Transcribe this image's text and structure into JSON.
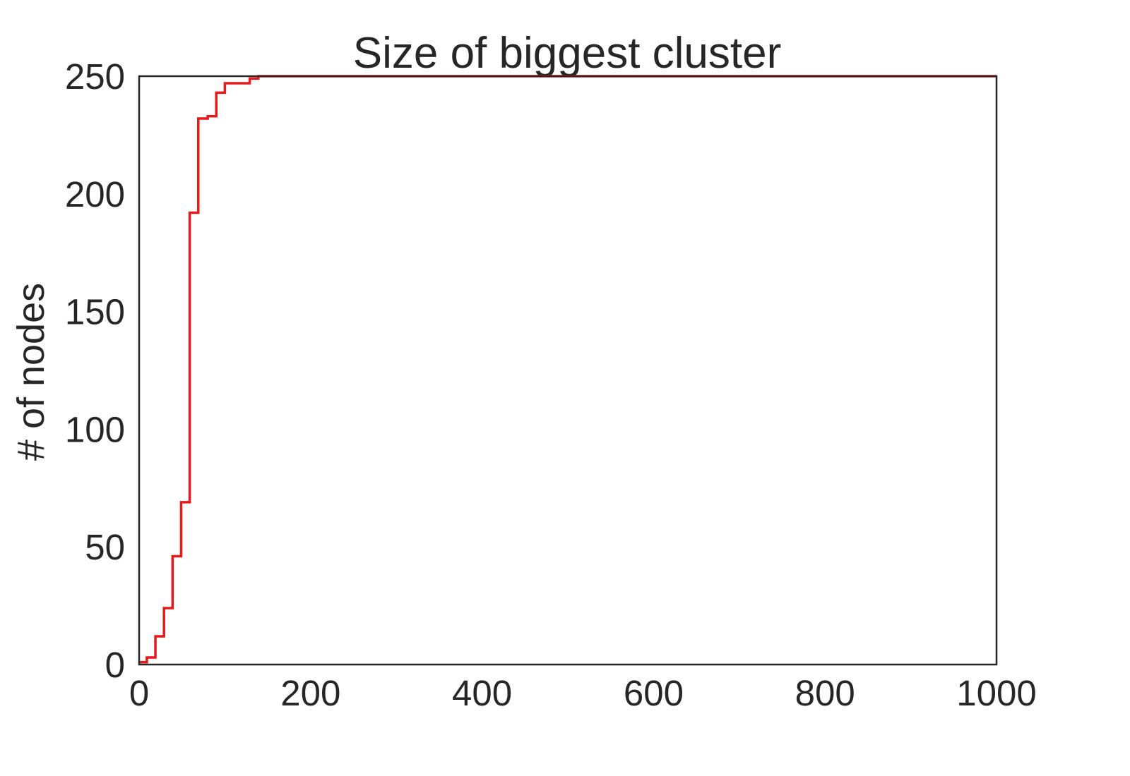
{
  "chart_data": {
    "type": "line",
    "title": "Size of biggest cluster",
    "xlabel": "",
    "ylabel": "# of nodes",
    "xlim": [
      0,
      1000
    ],
    "ylim": [
      0,
      250
    ],
    "xticks": [
      0,
      200,
      400,
      600,
      800,
      1000
    ],
    "yticks": [
      0,
      50,
      100,
      150,
      200,
      250
    ],
    "grid": false,
    "line_style": "steps-post",
    "series": [
      {
        "color": "#e41a1c",
        "x": [
          0,
          9,
          19,
          29,
          39,
          49,
          59,
          69,
          80,
          90,
          100,
          129,
          139,
          149,
          200,
          300,
          400,
          500,
          600,
          700,
          800,
          900,
          1000
        ],
        "y": [
          1,
          3,
          12,
          24,
          46,
          69,
          192,
          232,
          233,
          243,
          247,
          249,
          250,
          250,
          250,
          250,
          250,
          250,
          250,
          250,
          250,
          250,
          250
        ]
      }
    ]
  }
}
